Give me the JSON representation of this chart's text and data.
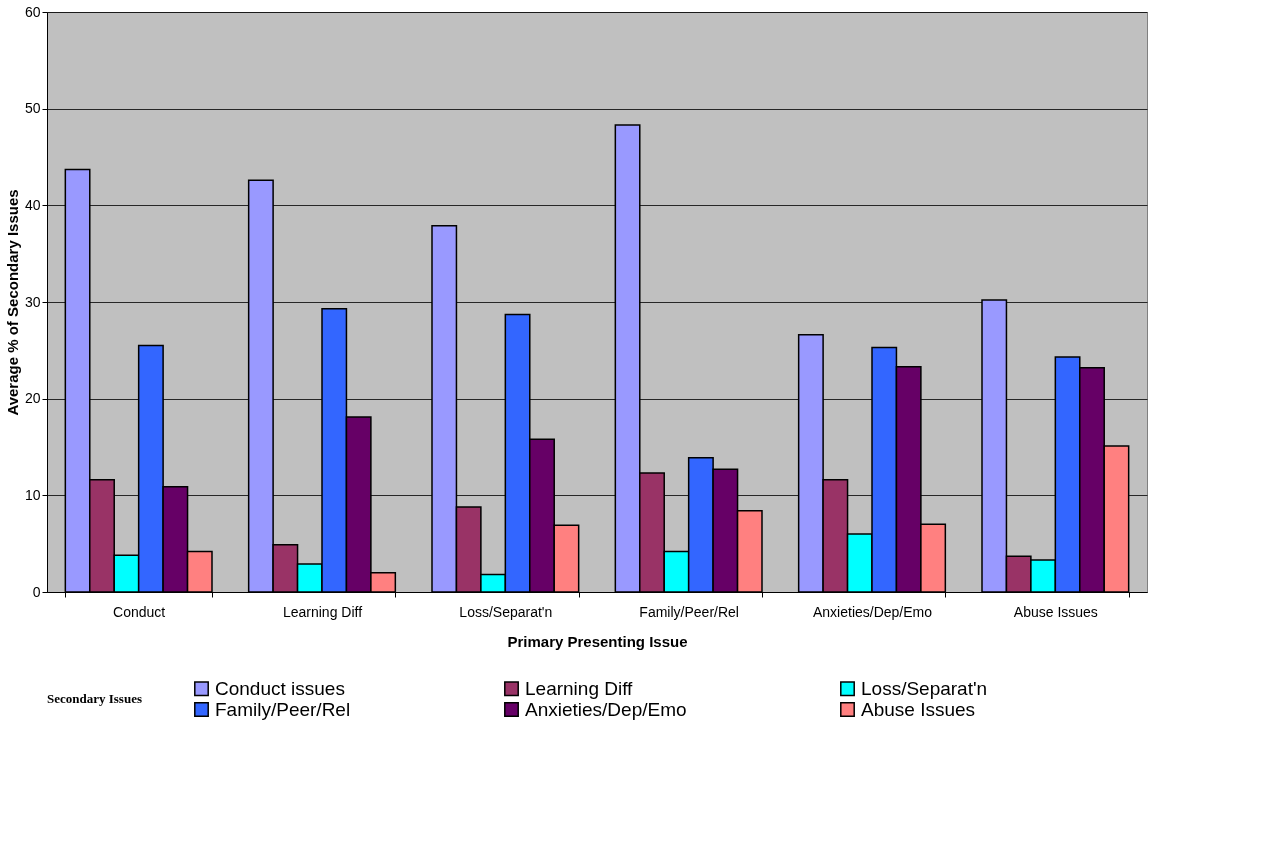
{
  "chart_data": {
    "type": "bar",
    "xlabel": "Primary Presenting Issue",
    "ylabel": "Average % of Secondary Issues",
    "legend_title": "Secondary Issues",
    "categories": [
      "Conduct",
      "Learning Diff",
      "Loss/Separat'n",
      "Family/Peer/Rel",
      "Anxieties/Dep/Emo",
      "Abuse Issues"
    ],
    "series": [
      {
        "name": "Conduct issues",
        "color": "#9999ff",
        "values": [
          43.7,
          42.6,
          37.9,
          48.3,
          26.6,
          30.2
        ]
      },
      {
        "name": "Learning Diff",
        "color": "#993366",
        "values": [
          11.6,
          4.9,
          8.8,
          12.3,
          11.6,
          3.7
        ]
      },
      {
        "name": "Loss/Separat'n",
        "color": "#00ffff",
        "values": [
          3.8,
          2.9,
          1.8,
          4.2,
          6.0,
          3.3
        ]
      },
      {
        "name": "Family/Peer/Rel",
        "color": "#3366ff",
        "values": [
          25.5,
          29.3,
          28.7,
          13.9,
          25.3,
          24.3
        ]
      },
      {
        "name": "Anxieties/Dep/Emo",
        "color": "#660066",
        "values": [
          10.9,
          18.1,
          15.8,
          12.7,
          23.3,
          23.2
        ]
      },
      {
        "name": "Abuse Issues",
        "color": "#ff8080",
        "values": [
          4.2,
          2.0,
          6.9,
          8.4,
          7.0,
          15.1
        ]
      }
    ],
    "ylim": [
      0,
      60
    ],
    "yticks": [
      0,
      10,
      20,
      30,
      40,
      50,
      60
    ],
    "grid": "y",
    "legend": "bottom"
  }
}
